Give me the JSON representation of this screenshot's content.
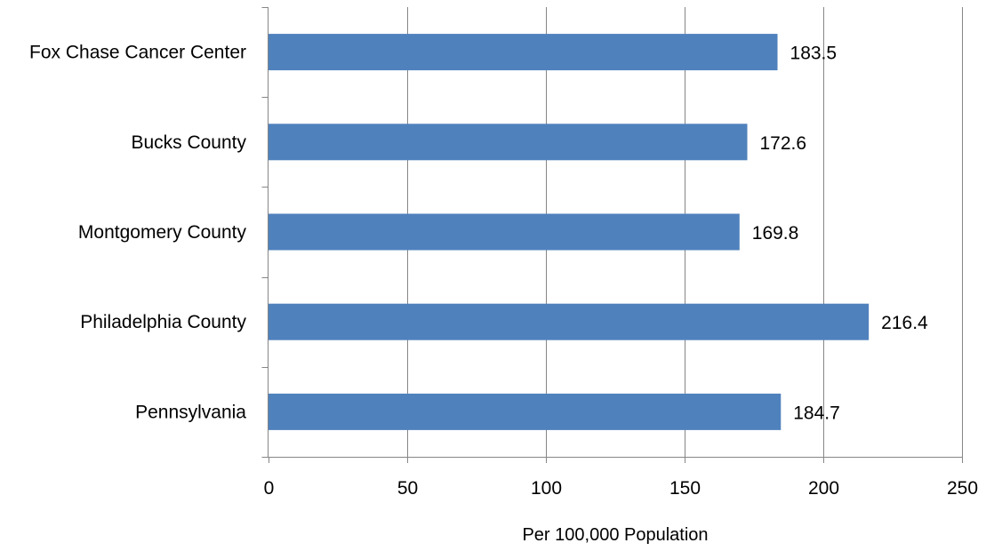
{
  "chart_data": {
    "type": "bar",
    "orientation": "horizontal",
    "categories": [
      "Fox Chase Cancer Center",
      "Bucks County",
      "Montgomery County",
      "Philadelphia County",
      "Pennsylvania"
    ],
    "values": [
      183.5,
      172.6,
      169.8,
      216.4,
      184.7
    ],
    "value_labels": [
      "183.5",
      "172.6",
      "169.8",
      "216.4",
      "184.7"
    ],
    "xlabel": "Per 100,000 Population",
    "ylabel": "",
    "xlim": [
      0,
      250
    ],
    "xticks": [
      0,
      50,
      100,
      150,
      200,
      250
    ],
    "grid": "vertical",
    "legend": "none",
    "bar_color": "#4f81bd"
  }
}
